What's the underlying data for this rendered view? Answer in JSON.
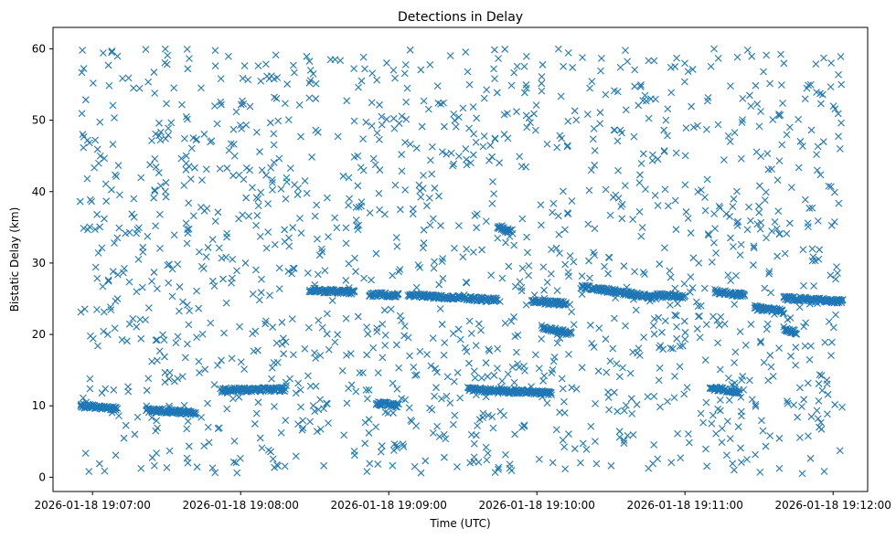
{
  "chart_data": {
    "type": "scatter",
    "title": "Detections in Delay",
    "xlabel": "Time (UTC)",
    "ylabel": "Bistatic Delay (km)",
    "marker": "x",
    "color": "#1f77b4",
    "x_unit": "seconds after 2026-01-18 19:07:00 UTC",
    "xlim": [
      -16,
      314
    ],
    "ylim": [
      -2,
      63
    ],
    "x_ticks": [
      0,
      60,
      120,
      180,
      240,
      300
    ],
    "x_tick_labels": [
      "2026-01-18 19:07:00",
      "2026-01-18 19:08:00",
      "2026-01-18 19:09:00",
      "2026-01-18 19:10:00",
      "2026-01-18 19:11:00",
      "2026-01-18 19:12:00"
    ],
    "y_ticks": [
      0,
      10,
      20,
      30,
      40,
      50,
      60
    ],
    "y_tick_labels": [
      "0",
      "10",
      "20",
      "30",
      "40",
      "50",
      "60"
    ],
    "grid": false,
    "legend": "none",
    "x_range": [
      -5,
      304
    ],
    "tracks": [
      {
        "x": [
          -5,
          10
        ],
        "y": [
          10.0,
          9.6
        ]
      },
      {
        "x": [
          22,
          42
        ],
        "y": [
          9.4,
          9.0
        ]
      },
      {
        "x": [
          52,
          78
        ],
        "y": [
          12.2,
          12.3
        ]
      },
      {
        "x": [
          88,
          106
        ],
        "y": [
          26.2,
          25.9
        ]
      },
      {
        "x": [
          112,
          124
        ],
        "y": [
          25.6,
          25.5
        ]
      },
      {
        "x": [
          115,
          124
        ],
        "y": [
          10.4,
          10.0
        ]
      },
      {
        "x": [
          128,
          164
        ],
        "y": [
          25.5,
          24.8
        ]
      },
      {
        "x": [
          152,
          186
        ],
        "y": [
          12.3,
          11.8
        ]
      },
      {
        "x": [
          164,
          170
        ],
        "y": [
          34.9,
          34.4
        ]
      },
      {
        "x": [
          178,
          192
        ],
        "y": [
          24.6,
          24.3
        ]
      },
      {
        "x": [
          182,
          194
        ],
        "y": [
          21.0,
          20.1
        ]
      },
      {
        "x": [
          198,
          228
        ],
        "y": [
          26.7,
          25.2
        ]
      },
      {
        "x": [
          228,
          240
        ],
        "y": [
          25.5,
          25.3
        ]
      },
      {
        "x": [
          252,
          264
        ],
        "y": [
          26.0,
          25.5
        ]
      },
      {
        "x": [
          250,
          262
        ],
        "y": [
          12.5,
          12.0
        ]
      },
      {
        "x": [
          268,
          280
        ],
        "y": [
          23.8,
          23.2
        ]
      },
      {
        "x": [
          280,
          304
        ],
        "y": [
          25.1,
          24.6
        ]
      },
      {
        "x": [
          280,
          285
        ],
        "y": [
          20.8,
          20.3
        ]
      }
    ]
  }
}
